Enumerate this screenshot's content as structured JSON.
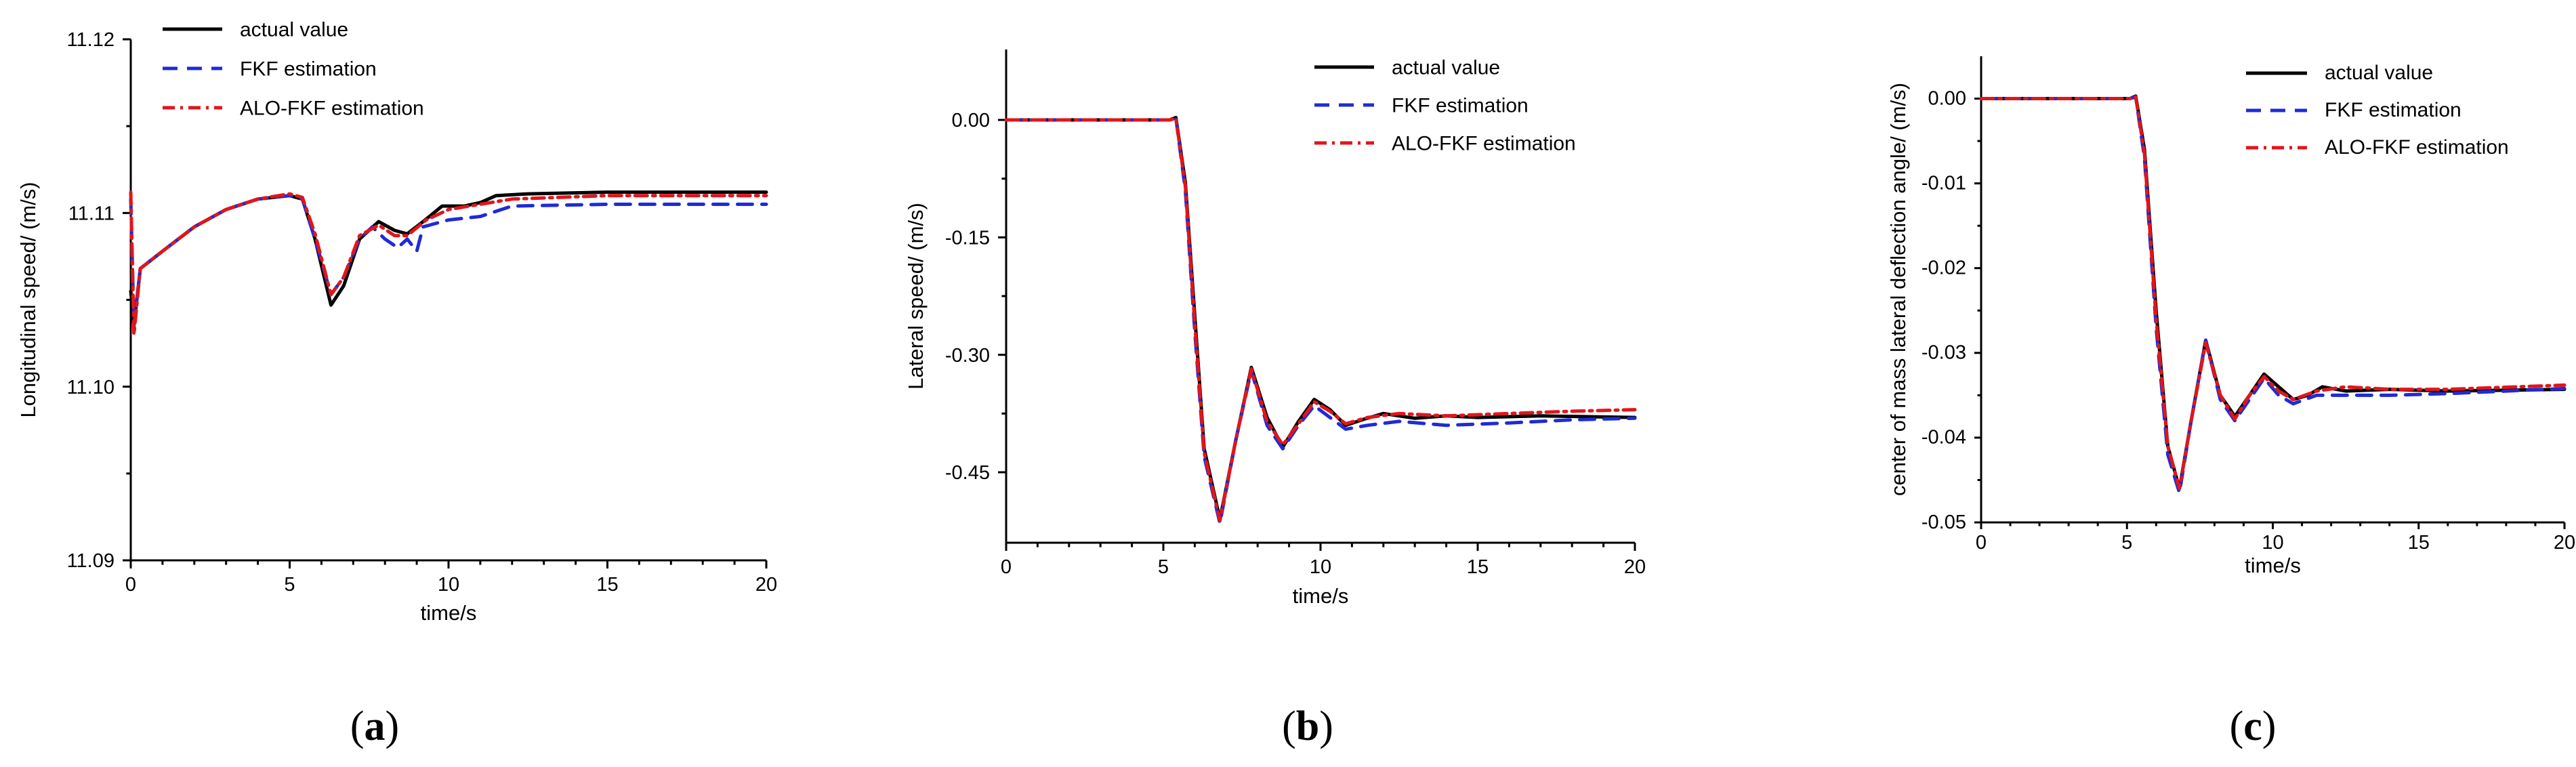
{
  "chart_data": [
    {
      "type": "line",
      "panel_label": "a",
      "xlabel": "time/s",
      "ylabel": "Longitudinal speed/  (m/s)",
      "xlim": [
        0,
        20
      ],
      "ylim": [
        11.09,
        11.12
      ],
      "xticks": [
        0,
        5,
        10,
        15,
        20
      ],
      "yticks": [
        11.09,
        11.1,
        11.11,
        11.12
      ],
      "ytick_labels": [
        "11.09",
        "11.10",
        "11.11",
        "11.12"
      ],
      "legend_position": "top-left",
      "series": [
        {
          "name": "actual value",
          "points": [
            [
              0,
              11.1055
            ],
            [
              0.1,
              11.1035
            ],
            [
              0.3,
              11.1068
            ],
            [
              1,
              11.1078
            ],
            [
              2,
              11.1092
            ],
            [
              3,
              11.1102
            ],
            [
              4,
              11.1108
            ],
            [
              5,
              11.111
            ],
            [
              5.4,
              11.1108
            ],
            [
              5.8,
              11.1085
            ],
            [
              6.3,
              11.1047
            ],
            [
              6.7,
              11.1058
            ],
            [
              7.2,
              11.1085
            ],
            [
              7.8,
              11.1095
            ],
            [
              8.3,
              11.109
            ],
            [
              8.7,
              11.1088
            ],
            [
              9.2,
              11.1095
            ],
            [
              9.8,
              11.1104
            ],
            [
              10.5,
              11.1104
            ],
            [
              11,
              11.1106
            ],
            [
              11.5,
              11.111
            ],
            [
              12.5,
              11.1111
            ],
            [
              15,
              11.1112
            ],
            [
              20,
              11.1112
            ]
          ]
        },
        {
          "name": "FKF estimation",
          "points": [
            [
              0,
              11.1108
            ],
            [
              0.1,
              11.1035
            ],
            [
              0.3,
              11.1068
            ],
            [
              1,
              11.1078
            ],
            [
              2,
              11.1092
            ],
            [
              3,
              11.1102
            ],
            [
              4,
              11.1108
            ],
            [
              5,
              11.111
            ],
            [
              5.4,
              11.1108
            ],
            [
              5.8,
              11.1085
            ],
            [
              6.3,
              11.1053
            ],
            [
              6.7,
              11.1063
            ],
            [
              7.2,
              11.1085
            ],
            [
              7.6,
              11.1092
            ],
            [
              8,
              11.1085
            ],
            [
              8.4,
              11.108
            ],
            [
              8.7,
              11.1085
            ],
            [
              9,
              11.1078
            ],
            [
              9.2,
              11.1092
            ],
            [
              10,
              11.1096
            ],
            [
              11,
              11.1098
            ],
            [
              12,
              11.1104
            ],
            [
              15,
              11.1105
            ],
            [
              20,
              11.1105
            ]
          ]
        },
        {
          "name": "ALO-FKF estimation",
          "points": [
            [
              0,
              11.1112
            ],
            [
              0.1,
              11.103
            ],
            [
              0.3,
              11.1068
            ],
            [
              1,
              11.1078
            ],
            [
              2,
              11.1092
            ],
            [
              3,
              11.1102
            ],
            [
              4,
              11.1108
            ],
            [
              5,
              11.1111
            ],
            [
              5.4,
              11.1109
            ],
            [
              5.8,
              11.1088
            ],
            [
              6.3,
              11.1053
            ],
            [
              6.7,
              11.1063
            ],
            [
              7.2,
              11.1087
            ],
            [
              7.8,
              11.1093
            ],
            [
              8.3,
              11.1087
            ],
            [
              8.7,
              11.1087
            ],
            [
              9.3,
              11.1096
            ],
            [
              10,
              11.1102
            ],
            [
              11,
              11.1105
            ],
            [
              12,
              11.1108
            ],
            [
              15,
              11.111
            ],
            [
              20,
              11.111
            ]
          ]
        }
      ]
    },
    {
      "type": "line",
      "panel_label": "b",
      "xlabel": "time/s",
      "ylabel": "Lateral speed/  (m/s)",
      "xlim": [
        0,
        20
      ],
      "ylim": [
        -0.54,
        0.09
      ],
      "xticks": [
        0,
        5,
        10,
        15,
        20
      ],
      "yticks": [
        0,
        -0.15,
        -0.3,
        -0.45
      ],
      "ytick_labels": [
        "0.00",
        "-0.15",
        "-0.30",
        "-0.45"
      ],
      "legend_position": "top-right",
      "series": [
        {
          "name": "actual value",
          "points": [
            [
              0,
              0
            ],
            [
              5.2,
              0
            ],
            [
              5.4,
              0.003
            ],
            [
              5.7,
              -0.08
            ],
            [
              6,
              -0.25
            ],
            [
              6.3,
              -0.42
            ],
            [
              6.8,
              -0.51
            ],
            [
              7.3,
              -0.41
            ],
            [
              7.8,
              -0.316
            ],
            [
              8.3,
              -0.38
            ],
            [
              8.8,
              -0.418
            ],
            [
              9.3,
              -0.385
            ],
            [
              9.8,
              -0.357
            ],
            [
              10.3,
              -0.37
            ],
            [
              10.8,
              -0.39
            ],
            [
              11.4,
              -0.382
            ],
            [
              12,
              -0.375
            ],
            [
              13,
              -0.381
            ],
            [
              14,
              -0.378
            ],
            [
              15,
              -0.38
            ],
            [
              17,
              -0.378
            ],
            [
              20,
              -0.38
            ]
          ]
        },
        {
          "name": "FKF estimation",
          "points": [
            [
              0,
              0
            ],
            [
              5.2,
              0
            ],
            [
              5.4,
              0.002
            ],
            [
              5.7,
              -0.09
            ],
            [
              6,
              -0.27
            ],
            [
              6.3,
              -0.43
            ],
            [
              6.8,
              -0.515
            ],
            [
              7.3,
              -0.41
            ],
            [
              7.8,
              -0.32
            ],
            [
              8.3,
              -0.39
            ],
            [
              8.8,
              -0.42
            ],
            [
              9.3,
              -0.39
            ],
            [
              9.8,
              -0.365
            ],
            [
              10.3,
              -0.38
            ],
            [
              10.8,
              -0.395
            ],
            [
              11.5,
              -0.39
            ],
            [
              12.5,
              -0.385
            ],
            [
              14,
              -0.39
            ],
            [
              16,
              -0.387
            ],
            [
              18,
              -0.383
            ],
            [
              20,
              -0.381
            ]
          ]
        },
        {
          "name": "ALO-FKF estimation",
          "points": [
            [
              0,
              0
            ],
            [
              5.2,
              0
            ],
            [
              5.4,
              0.002
            ],
            [
              5.7,
              -0.085
            ],
            [
              6,
              -0.26
            ],
            [
              6.3,
              -0.425
            ],
            [
              6.8,
              -0.512
            ],
            [
              7.3,
              -0.41
            ],
            [
              7.8,
              -0.318
            ],
            [
              8.3,
              -0.385
            ],
            [
              8.8,
              -0.415
            ],
            [
              9.3,
              -0.388
            ],
            [
              9.8,
              -0.36
            ],
            [
              10.3,
              -0.372
            ],
            [
              10.8,
              -0.388
            ],
            [
              11.5,
              -0.38
            ],
            [
              12.5,
              -0.375
            ],
            [
              14,
              -0.378
            ],
            [
              16,
              -0.375
            ],
            [
              18,
              -0.372
            ],
            [
              20,
              -0.37
            ]
          ]
        }
      ]
    },
    {
      "type": "line",
      "panel_label": "c",
      "xlabel": "time/s",
      "ylabel": "center of mass lateral deflection angle/  (m/s)",
      "xlim": [
        0,
        20
      ],
      "ylim": [
        -0.05,
        0.005
      ],
      "xticks": [
        0,
        5,
        10,
        15,
        20
      ],
      "yticks": [
        0,
        -0.01,
        -0.02,
        -0.03,
        -0.04,
        -0.05
      ],
      "ytick_labels": [
        "0.00",
        "-0.01",
        "-0.02",
        "-0.03",
        "-0.04",
        "-0.05"
      ],
      "legend_position": "top-right",
      "series": [
        {
          "name": "actual value",
          "points": [
            [
              0,
              0
            ],
            [
              5.1,
              0
            ],
            [
              5.3,
              0.0003
            ],
            [
              5.6,
              -0.006
            ],
            [
              6,
              -0.025
            ],
            [
              6.4,
              -0.041
            ],
            [
              6.8,
              -0.046
            ],
            [
              7.2,
              -0.038
            ],
            [
              7.7,
              -0.0285
            ],
            [
              8.2,
              -0.035
            ],
            [
              8.7,
              -0.0375
            ],
            [
              9.2,
              -0.035
            ],
            [
              9.7,
              -0.0325
            ],
            [
              10.2,
              -0.034
            ],
            [
              10.7,
              -0.0355
            ],
            [
              11.2,
              -0.035
            ],
            [
              11.7,
              -0.034
            ],
            [
              12.5,
              -0.0345
            ],
            [
              14,
              -0.0343
            ],
            [
              16,
              -0.0345
            ],
            [
              20,
              -0.0343
            ]
          ]
        },
        {
          "name": "FKF estimation",
          "points": [
            [
              0,
              0
            ],
            [
              5.1,
              0
            ],
            [
              5.3,
              0.0002
            ],
            [
              5.6,
              -0.007
            ],
            [
              6,
              -0.027
            ],
            [
              6.4,
              -0.042
            ],
            [
              6.8,
              -0.0465
            ],
            [
              7.2,
              -0.038
            ],
            [
              7.7,
              -0.0285
            ],
            [
              8.2,
              -0.0355
            ],
            [
              8.7,
              -0.038
            ],
            [
              9.2,
              -0.0355
            ],
            [
              9.7,
              -0.033
            ],
            [
              10.2,
              -0.035
            ],
            [
              10.7,
              -0.036
            ],
            [
              11.5,
              -0.035
            ],
            [
              12.5,
              -0.035
            ],
            [
              14,
              -0.035
            ],
            [
              16,
              -0.0348
            ],
            [
              20,
              -0.0342
            ]
          ]
        },
        {
          "name": "ALO-FKF estimation",
          "points": [
            [
              0,
              0
            ],
            [
              5.1,
              0
            ],
            [
              5.3,
              0.0002
            ],
            [
              5.6,
              -0.0065
            ],
            [
              6,
              -0.026
            ],
            [
              6.4,
              -0.041
            ],
            [
              6.8,
              -0.046
            ],
            [
              7.2,
              -0.038
            ],
            [
              7.7,
              -0.0288
            ],
            [
              8.2,
              -0.035
            ],
            [
              8.7,
              -0.0378
            ],
            [
              9.2,
              -0.035
            ],
            [
              9.7,
              -0.0328
            ],
            [
              10.2,
              -0.0345
            ],
            [
              10.7,
              -0.0355
            ],
            [
              11.5,
              -0.0345
            ],
            [
              12.5,
              -0.034
            ],
            [
              14,
              -0.0343
            ],
            [
              16,
              -0.0343
            ],
            [
              20,
              -0.0338
            ]
          ]
        }
      ]
    }
  ],
  "styles": {
    "actual value": {
      "color": "#000000",
      "dash": ""
    },
    "FKF estimation": {
      "color": "#1f2bd6",
      "dash": "22,14"
    },
    "ALO-FKF estimation": {
      "color": "#e0161b",
      "dash": "18,8,4,8"
    }
  }
}
